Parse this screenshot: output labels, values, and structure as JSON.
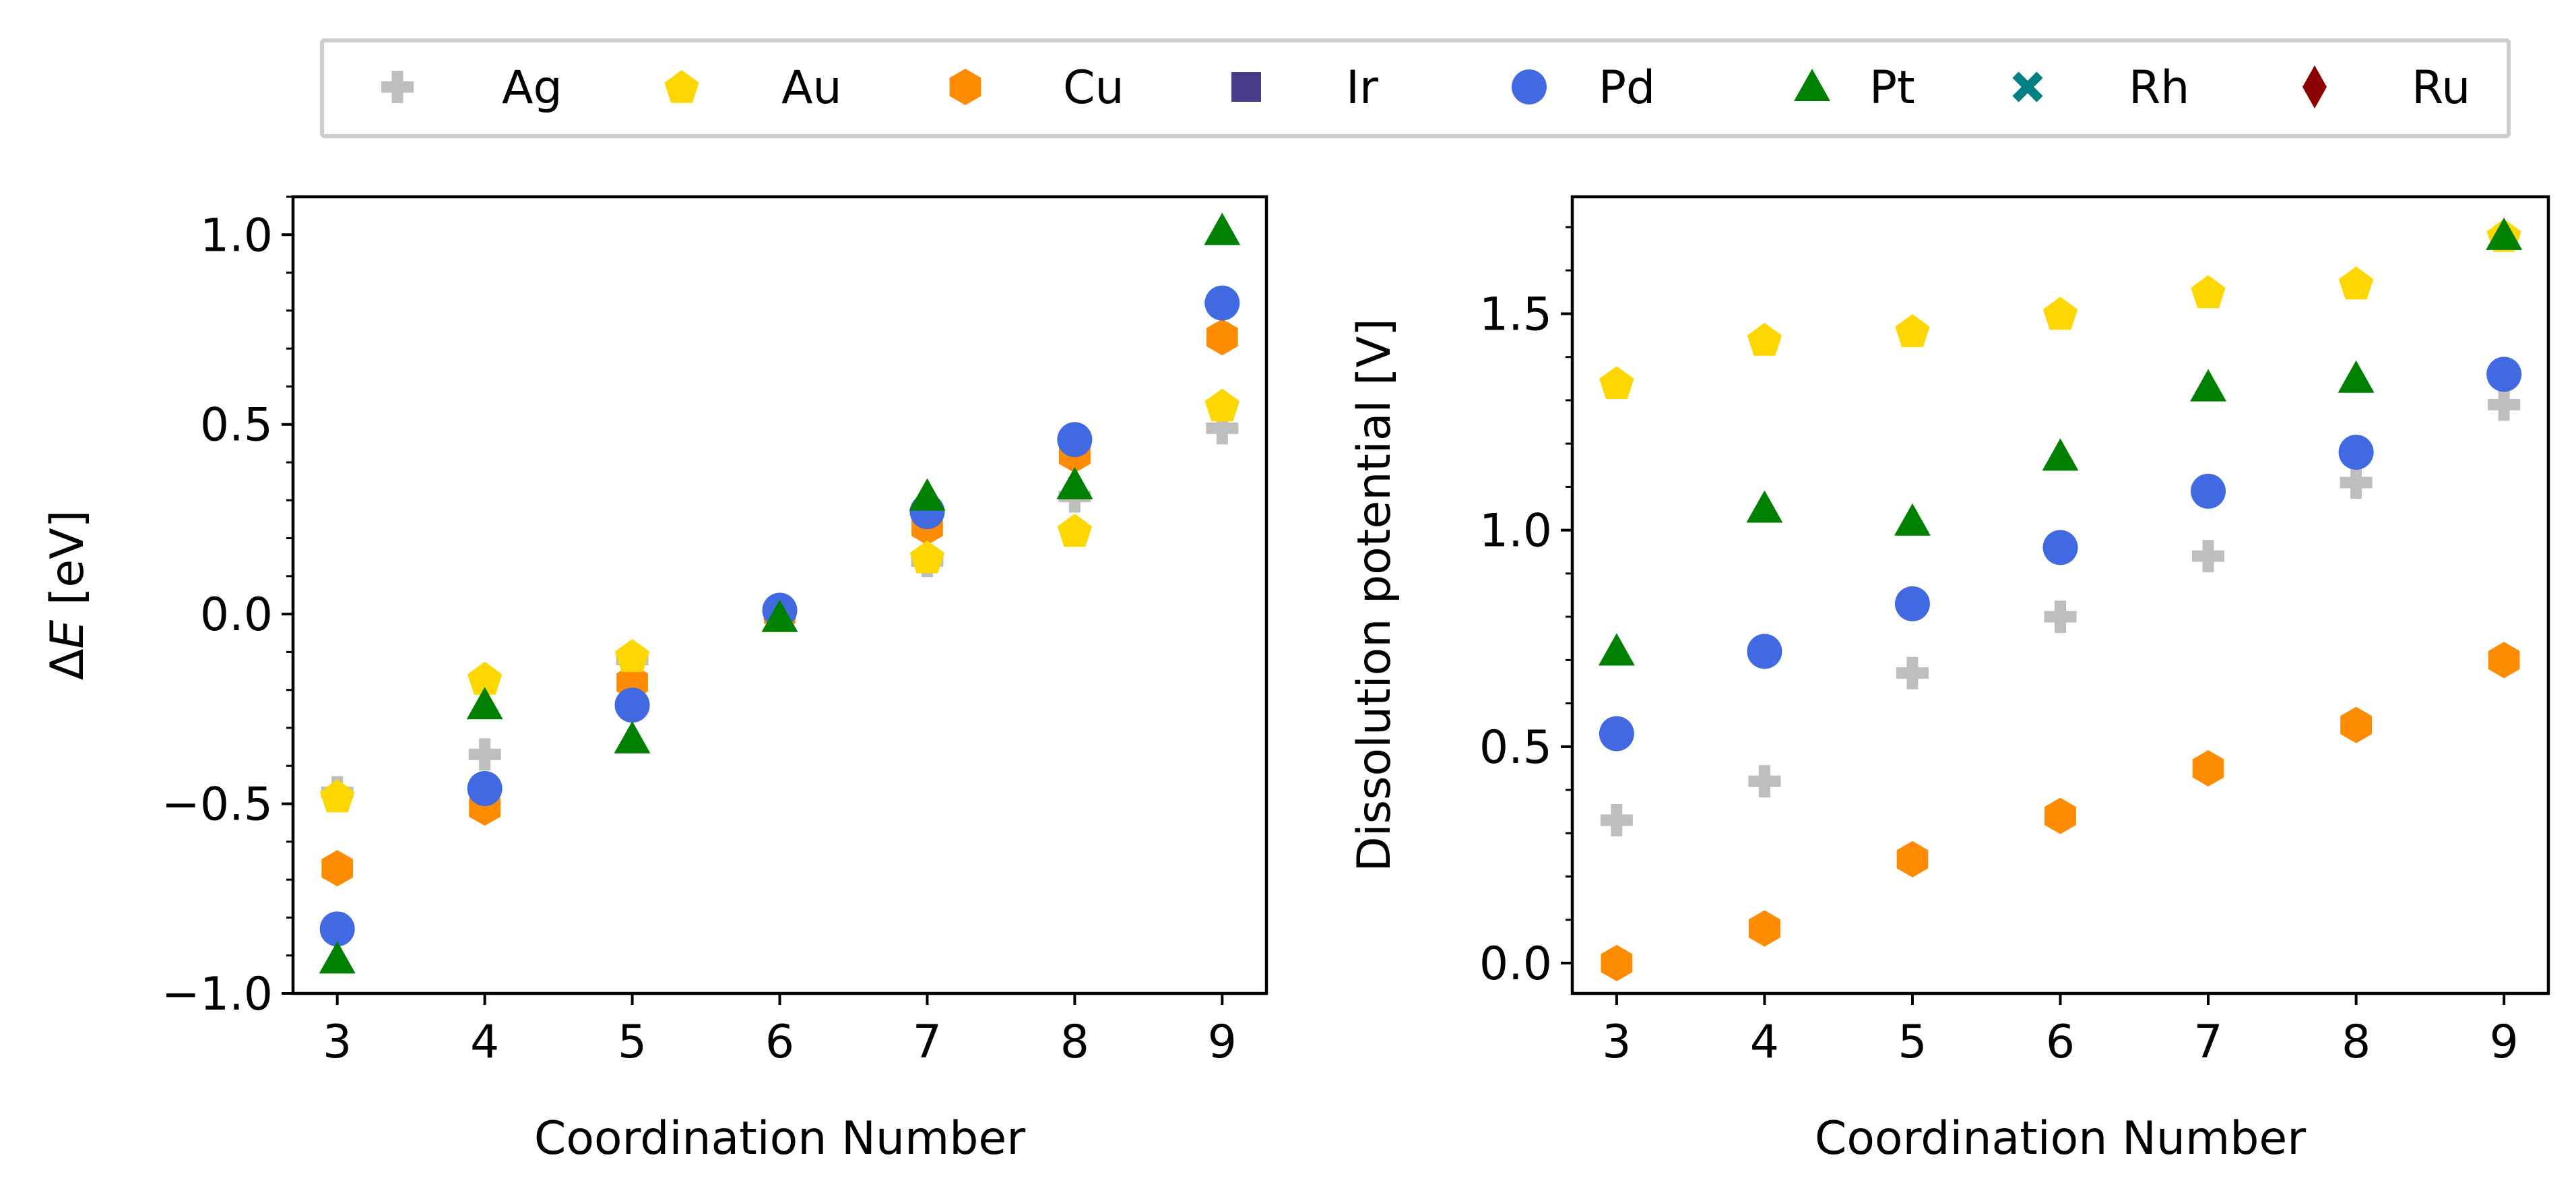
{
  "legend": {
    "entries": [
      {
        "name": "Ag",
        "color": "#bebebe",
        "marker": "plus"
      },
      {
        "name": "Au",
        "color": "#ffd700",
        "marker": "pentagon"
      },
      {
        "name": "Cu",
        "color": "#ff8c00",
        "marker": "hexagon"
      },
      {
        "name": "Ir",
        "color": "#483d8b",
        "marker": "square"
      },
      {
        "name": "Pd",
        "color": "#4169e1",
        "marker": "circle"
      },
      {
        "name": "Pt",
        "color": "#008000",
        "marker": "triangle"
      },
      {
        "name": "Rh",
        "color": "#008080",
        "marker": "x"
      },
      {
        "name": "Ru",
        "color": "#8b0000",
        "marker": "diamond"
      }
    ]
  },
  "chart_data": [
    {
      "type": "scatter",
      "xlabel": "Coordination Number",
      "ylabel_symbol": "ΔE",
      "ylabel_unit": " [eV]",
      "x_ticks": [
        3,
        4,
        5,
        6,
        7,
        8,
        9
      ],
      "y_ticks": [
        "−1.0",
        "−0.5",
        "0.0",
        "0.5",
        "1.0"
      ],
      "y_tick_values": [
        -1.0,
        -0.5,
        0.0,
        0.5,
        1.0
      ],
      "xlim": [
        2.7,
        9.3
      ],
      "ylim": [
        -1.0,
        1.1
      ],
      "grid": false,
      "x": [
        3,
        4,
        5,
        6,
        7,
        8,
        9
      ],
      "series": [
        {
          "name": "Ag",
          "values": [
            -0.47,
            -0.37,
            -0.12,
            0.0,
            0.14,
            0.31,
            0.49
          ]
        },
        {
          "name": "Cu",
          "values": [
            -0.67,
            -0.51,
            -0.18,
            0.0,
            0.23,
            0.42,
            0.73
          ]
        },
        {
          "name": "Au",
          "values": [
            -0.48,
            -0.17,
            -0.11,
            0.0,
            0.15,
            0.22,
            0.55
          ]
        },
        {
          "name": "Pd",
          "values": [
            -0.83,
            -0.46,
            -0.24,
            0.01,
            0.27,
            0.46,
            0.82
          ]
        },
        {
          "name": "Pt",
          "values": [
            -0.91,
            -0.24,
            -0.33,
            -0.01,
            0.31,
            0.34,
            1.01
          ]
        }
      ]
    },
    {
      "type": "scatter",
      "xlabel": "Coordination Number",
      "ylabel": "Dissolution potential [V]",
      "x_ticks": [
        3,
        4,
        5,
        6,
        7,
        8,
        9
      ],
      "y_ticks": [
        "0.0",
        "0.5",
        "1.0",
        "1.5"
      ],
      "y_tick_values": [
        0.0,
        0.5,
        1.0,
        1.5
      ],
      "xlim": [
        2.7,
        9.3
      ],
      "ylim": [
        -0.07,
        1.77
      ],
      "grid": false,
      "x": [
        3,
        4,
        5,
        6,
        7,
        8,
        9
      ],
      "series": [
        {
          "name": "Ag",
          "values": [
            0.33,
            0.42,
            0.67,
            0.8,
            0.94,
            1.11,
            1.29
          ]
        },
        {
          "name": "Cu",
          "values": [
            0.0,
            0.08,
            0.24,
            0.34,
            0.45,
            0.55,
            0.7
          ]
        },
        {
          "name": "Au",
          "values": [
            1.34,
            1.44,
            1.46,
            1.5,
            1.55,
            1.57,
            1.68
          ]
        },
        {
          "name": "Pd",
          "values": [
            0.53,
            0.72,
            0.83,
            0.96,
            1.09,
            1.18,
            1.36
          ]
        },
        {
          "name": "Pt",
          "values": [
            0.72,
            1.05,
            1.02,
            1.17,
            1.33,
            1.35,
            1.68
          ]
        }
      ]
    }
  ]
}
